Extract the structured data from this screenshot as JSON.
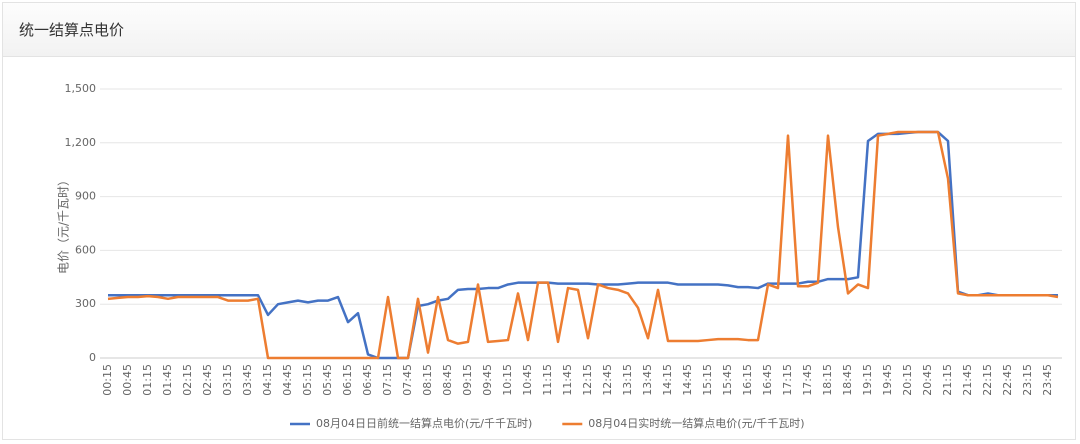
{
  "chart_data": {
    "type": "line",
    "title": "统一结算点电价",
    "ylabel": "电价（元/千瓦时）",
    "categories": [
      "00:15",
      null,
      "00:45",
      null,
      "01:15",
      null,
      "01:45",
      null,
      "02:15",
      null,
      "02:45",
      null,
      "03:15",
      null,
      "03:45",
      null,
      "04:15",
      null,
      "04:45",
      null,
      "05:15",
      null,
      "05:45",
      null,
      "06:15",
      null,
      "06:45",
      null,
      "07:15",
      null,
      "07:45",
      null,
      "08:15",
      null,
      "08:45",
      null,
      "09:15",
      null,
      "09:45",
      null,
      "10:15",
      null,
      "10:45",
      null,
      "11:15",
      null,
      "11:45",
      null,
      "12:15",
      null,
      "12:45",
      null,
      "13:15",
      null,
      "13:45",
      null,
      "14:15",
      null,
      "14:45",
      null,
      "15:15",
      null,
      "15:45",
      null,
      "16:15",
      null,
      "16:45",
      null,
      "17:15",
      null,
      "17:45",
      null,
      "18:15",
      null,
      "18:45",
      null,
      "19:15",
      null,
      "19:45",
      null,
      "20:15",
      null,
      "20:45",
      null,
      "21:15",
      null,
      "21:45",
      null,
      "22:15",
      null,
      "22:45",
      null,
      "23:15",
      null,
      "23:45",
      null
    ],
    "series": [
      {
        "name": "08月04日日前统一结算点电价(元/千千瓦时)",
        "color": "#4472c4",
        "values": [
          350,
          350,
          350,
          350,
          350,
          350,
          350,
          350,
          350,
          350,
          350,
          350,
          350,
          350,
          350,
          350,
          240,
          300,
          310,
          320,
          310,
          320,
          320,
          340,
          200,
          250,
          20,
          0,
          0,
          0,
          0,
          290,
          300,
          320,
          330,
          380,
          385,
          385,
          390,
          390,
          410,
          420,
          420,
          420,
          420,
          415,
          415,
          415,
          415,
          410,
          410,
          410,
          415,
          420,
          420,
          420,
          420,
          410,
          410,
          410,
          410,
          410,
          405,
          395,
          395,
          390,
          415,
          415,
          415,
          415,
          425,
          425,
          440,
          440,
          440,
          450,
          1210,
          1250,
          1250,
          1250,
          1255,
          1260,
          1260,
          1260,
          1210,
          370,
          350,
          350,
          360,
          350,
          350,
          350,
          350,
          350,
          350,
          350
        ]
      },
      {
        "name": "08月04日实时统一结算点电价(元/千千瓦时)",
        "color": "#ed7d31",
        "values": [
          330,
          335,
          340,
          340,
          345,
          340,
          330,
          340,
          340,
          340,
          340,
          340,
          320,
          320,
          320,
          330,
          0,
          0,
          0,
          0,
          0,
          0,
          0,
          0,
          0,
          0,
          0,
          0,
          340,
          0,
          0,
          330,
          30,
          340,
          100,
          80,
          90,
          410,
          90,
          95,
          100,
          360,
          100,
          420,
          420,
          90,
          390,
          380,
          110,
          410,
          390,
          380,
          360,
          280,
          110,
          380,
          95,
          95,
          95,
          95,
          100,
          105,
          105,
          105,
          100,
          100,
          410,
          390,
          1240,
          400,
          400,
          420,
          1240,
          730,
          360,
          410,
          390,
          1240,
          1250,
          1260,
          1260,
          1260,
          1260,
          1260,
          1000,
          360,
          350,
          350,
          350,
          350,
          350,
          350,
          350,
          350,
          350,
          340
        ]
      }
    ],
    "ylim": [
      0,
      1500
    ],
    "yticks": [
      0,
      300,
      600,
      900,
      {
        "value": 1200,
        "label": "1,200"
      },
      {
        "value": 1500,
        "label": "1,500"
      }
    ],
    "grid": true
  }
}
